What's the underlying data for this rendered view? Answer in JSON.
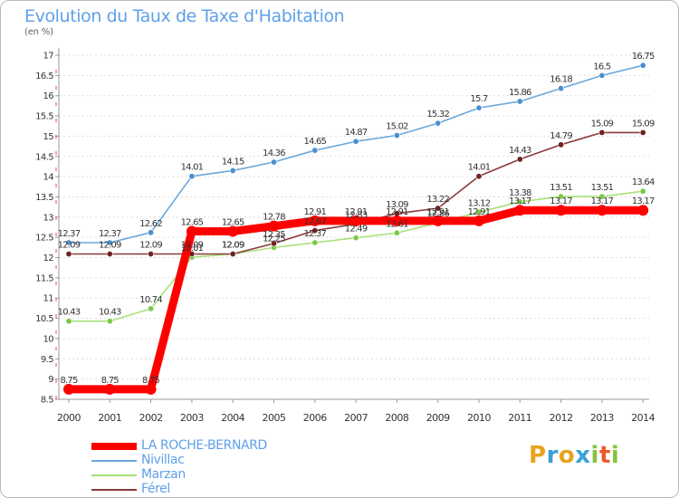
{
  "header": {
    "title": "Evolution du Taux de Taxe d'Habitation",
    "unit": "(en %)"
  },
  "colors": {
    "title": "#5fa0e8",
    "axis": "#999999",
    "grid": "#dcdcdc",
    "text": "#333333"
  },
  "chart_data": {
    "type": "line",
    "title": "Evolution du Taux de Taxe d'Habitation",
    "ylabel": "(en %)",
    "xlabel": "",
    "x": [
      "2000",
      "2001",
      "2002",
      "2003",
      "2004",
      "2005",
      "2006",
      "2007",
      "2008",
      "2009",
      "2010",
      "2011",
      "2012",
      "2013",
      "2014"
    ],
    "ylim": [
      8.5,
      17
    ],
    "yticks": [
      "8.5",
      "9",
      "9.5",
      "10",
      "10.5",
      "11",
      "11.5",
      "12",
      "12.5",
      "13",
      "13.5",
      "14",
      "14.5",
      "15",
      "15.5",
      "16",
      "16.5",
      "17"
    ],
    "grid": "horizontal",
    "legend_position": "bottom-left",
    "series": [
      {
        "name": "LA ROCHE-BERNARD",
        "color": "#ff0000",
        "marker": "#ff0000",
        "emphasis": true,
        "values": [
          8.75,
          8.75,
          8.75,
          12.65,
          12.65,
          12.78,
          12.91,
          12.91,
          12.91,
          12.91,
          12.91,
          13.17,
          13.17,
          13.17,
          13.17
        ],
        "labels": [
          "8.75",
          "8.75",
          "8.75",
          "12.65",
          "12.65",
          "12.78",
          "12.91",
          "12.91",
          "12.91",
          "12.91",
          "12.91",
          "13.17",
          "13.17",
          "13.17",
          "13.17"
        ]
      },
      {
        "name": "Nivillac",
        "color": "#6aa8dc",
        "marker": "#4a90d0",
        "emphasis": false,
        "values": [
          12.37,
          12.37,
          12.62,
          14.01,
          14.15,
          14.36,
          14.65,
          14.87,
          15.02,
          15.32,
          15.7,
          15.86,
          16.18,
          16.5,
          16.75
        ],
        "labels": [
          "12.37",
          "12.37",
          "12.62",
          "14.01",
          "14.15",
          "14.36",
          "14.65",
          "14.87",
          "15.02",
          "15.32",
          "15.7",
          "15.86",
          "16.18",
          "16.5",
          "16.75"
        ]
      },
      {
        "name": "Marzan",
        "color": "#a8e07a",
        "marker": "#7cc84a",
        "emphasis": false,
        "values": [
          10.43,
          10.43,
          10.74,
          12.01,
          12.09,
          12.25,
          12.37,
          12.49,
          12.61,
          12.86,
          13.12,
          13.38,
          13.51,
          13.51,
          13.64
        ],
        "labels": [
          "10.43",
          "10.43",
          "10.74",
          "12.01",
          "12.09",
          "12.25",
          "12.37",
          "12.49",
          "12.61",
          "12.86",
          "13.12",
          "13.38",
          "13.51",
          "13.51",
          "13.64"
        ]
      },
      {
        "name": "Férel",
        "color": "#8b3a3a",
        "marker": "#6e2222",
        "emphasis": false,
        "values": [
          12.09,
          12.09,
          12.09,
          12.09,
          12.09,
          12.35,
          12.67,
          12.83,
          13.09,
          13.22,
          14.01,
          14.43,
          14.79,
          15.09,
          15.09
        ],
        "labels": [
          "12.09",
          "12.09",
          "12.09",
          "12.09",
          "12.09",
          "12.35",
          "12.67",
          "12.83",
          "13.09",
          "13.22",
          "14.01",
          "14.43",
          "14.79",
          "15.09",
          "15.09"
        ]
      }
    ]
  },
  "legend": [
    {
      "label": "LA ROCHE-BERNARD",
      "color": "#ff0000",
      "width": 8
    },
    {
      "label": "Nivillac",
      "color": "#6aa8dc",
      "width": 2
    },
    {
      "label": "Marzan",
      "color": "#a8e07a",
      "width": 2
    },
    {
      "label": "Férel",
      "color": "#8b3a3a",
      "width": 2
    }
  ],
  "logo": {
    "letters": [
      "P",
      "r",
      "o",
      "x",
      "i",
      "t",
      "i"
    ],
    "colors": [
      "#e8a21c",
      "#3aa0d8",
      "#e8a21c",
      "#3aa0d8",
      "#86c440",
      "#e85b2a",
      "#86c440"
    ]
  }
}
